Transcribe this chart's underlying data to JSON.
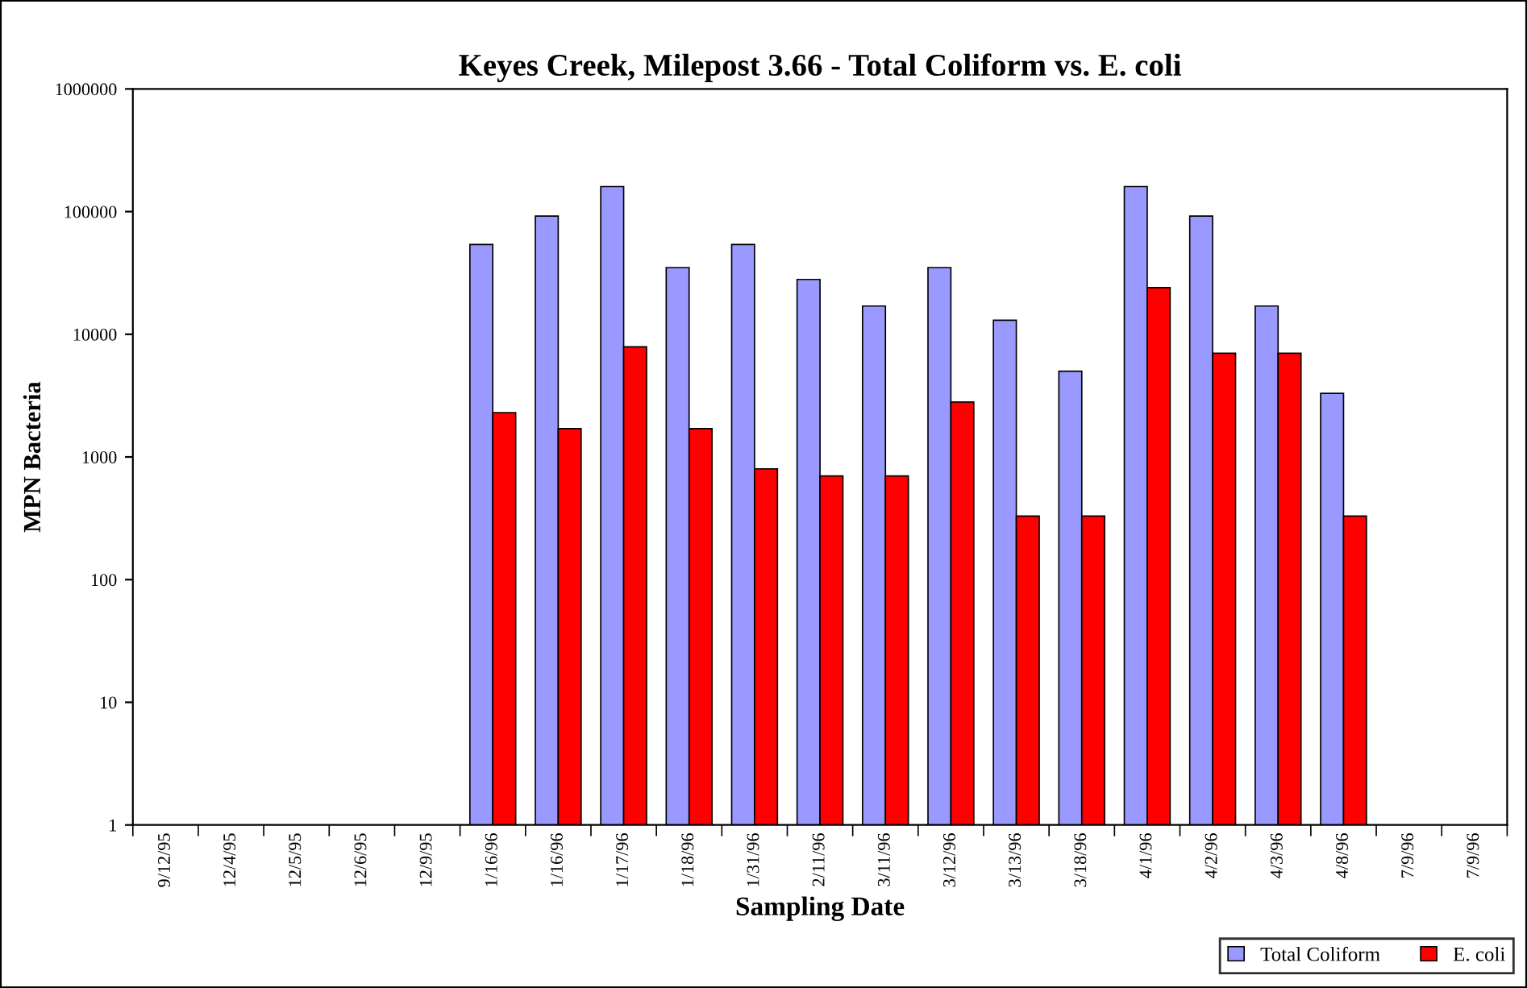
{
  "chart_data": {
    "type": "bar",
    "title": "Keyes Creek, Milepost 3.66 - Total Coliform vs. E. coli",
    "xlabel": "Sampling Date",
    "ylabel": "MPN Bacteria",
    "categories": [
      "9/12/95",
      "12/4/95",
      "12/5/95",
      "12/6/95",
      "12/9/95",
      "1/16/96",
      "1/16/96",
      "1/17/96",
      "1/18/96",
      "1/31/96",
      "2/11/96",
      "3/11/96",
      "3/12/96",
      "3/13/96",
      "3/18/96",
      "4/1/96",
      "4/2/96",
      "4/3/96",
      "4/8/96",
      "7/9/96",
      "7/9/96"
    ],
    "series": [
      {
        "name": "Total Coliform",
        "color": "#9999ff",
        "values": [
          null,
          null,
          null,
          null,
          null,
          54000,
          92000,
          160000,
          35000,
          54000,
          28000,
          17000,
          35000,
          13000,
          5000,
          160000,
          92000,
          17000,
          3300,
          null,
          null
        ]
      },
      {
        "name": "E. coli",
        "color": "#ff0000",
        "values": [
          null,
          null,
          null,
          null,
          null,
          2300,
          1700,
          7900,
          1700,
          800,
          700,
          700,
          2800,
          330,
          330,
          24000,
          7000,
          7000,
          330,
          null,
          null
        ]
      }
    ],
    "log": "y",
    "ylim": [
      1,
      1000000
    ],
    "yticks": [
      1,
      10,
      100,
      1000,
      10000,
      100000,
      1000000
    ],
    "grid": false,
    "legend": "bottom right"
  }
}
